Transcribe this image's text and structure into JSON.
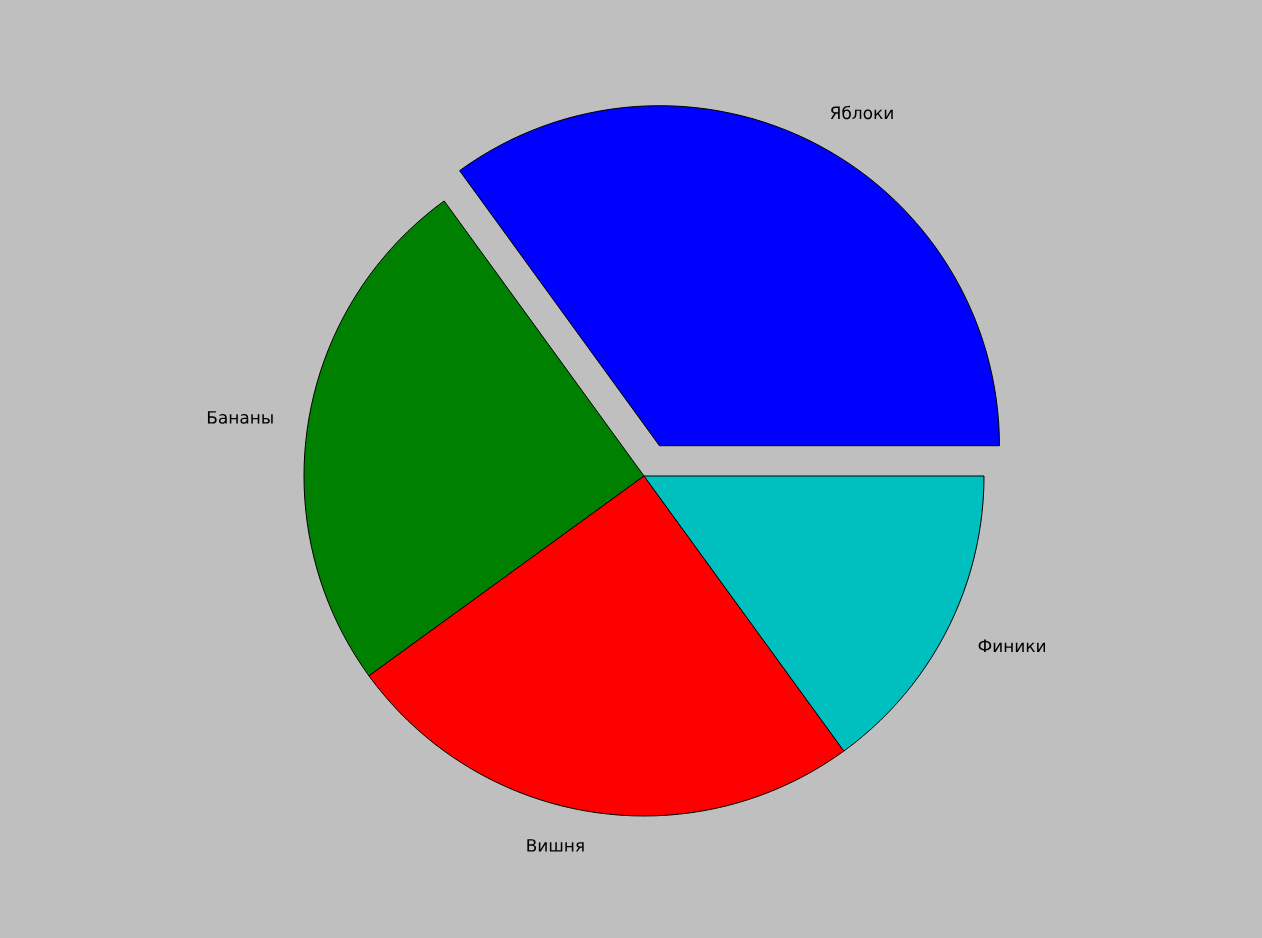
{
  "chart_data": {
    "type": "pie",
    "categories": [
      "Яблоки",
      "Бананы",
      "Вишня",
      "Финики"
    ],
    "values": [
      35,
      25,
      25,
      15
    ],
    "colors": [
      "#0000ff",
      "#008000",
      "#ff0000",
      "#00bfbf"
    ]
  }
}
